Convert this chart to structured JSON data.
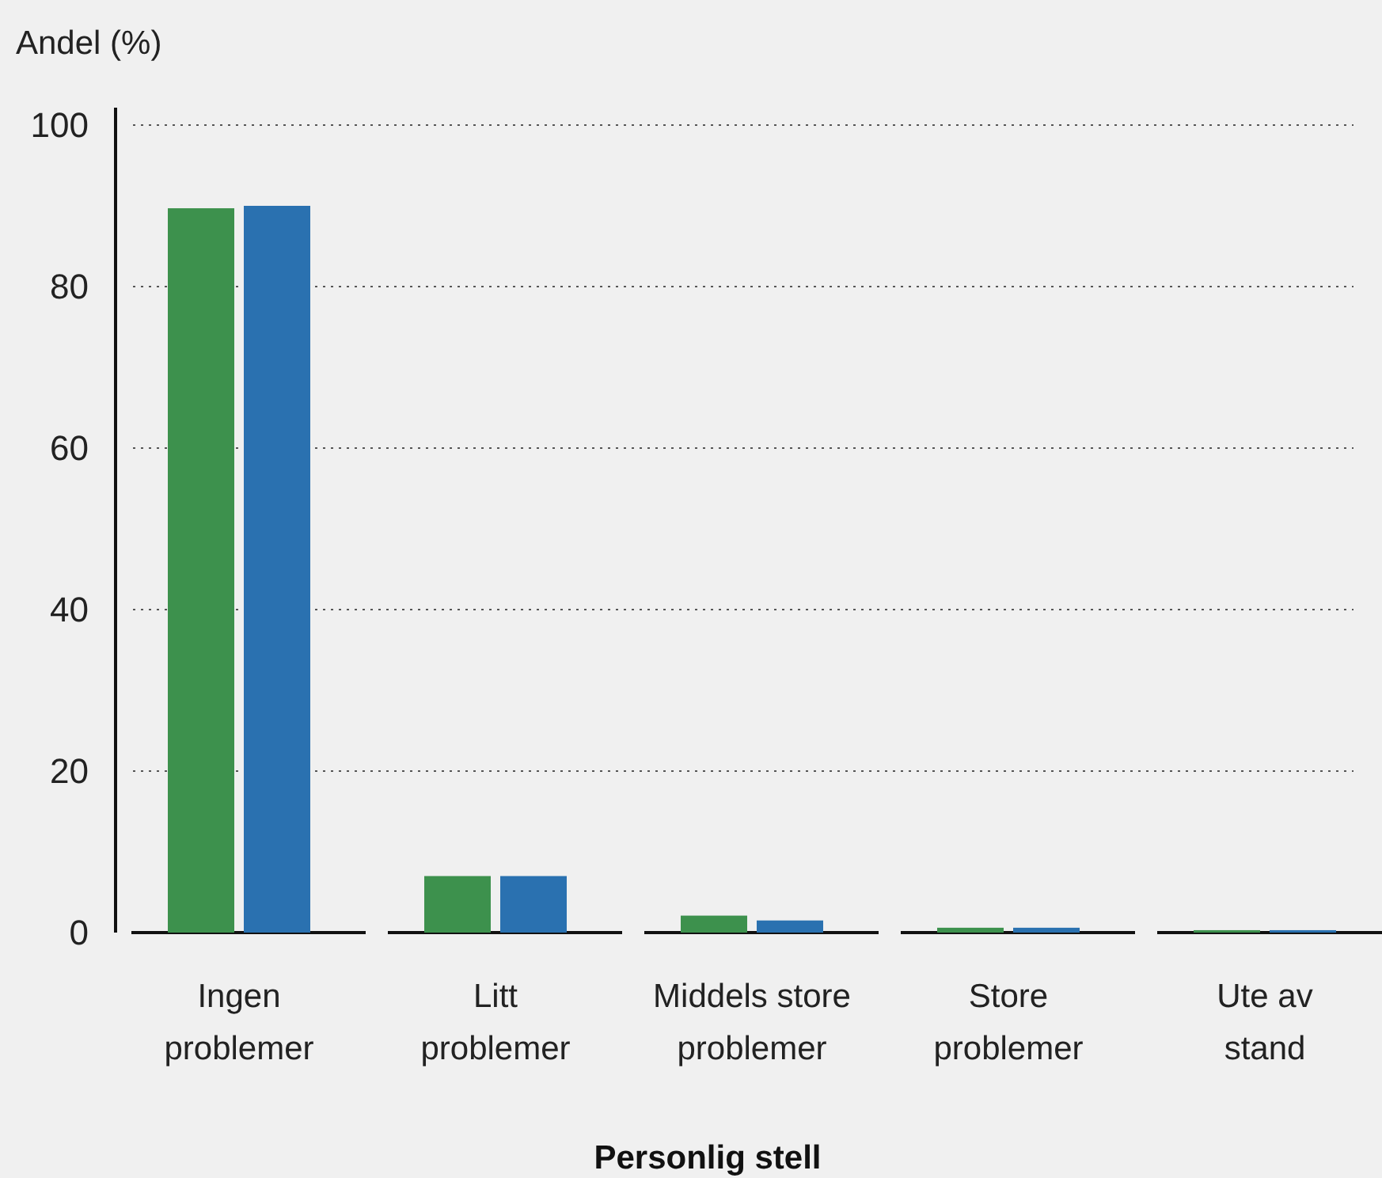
{
  "chart_data": {
    "type": "bar",
    "ylabel": "Andel (%)",
    "xlabel": "Personlig stell",
    "categories": [
      "Ingen problemer",
      "Litt problemer",
      "Middels store problemer",
      "Store problemer",
      "Ute av stand"
    ],
    "series": [
      {
        "color": "#3d914d",
        "values": [
          89.7,
          7.0,
          2.1,
          0.6,
          0.3
        ]
      },
      {
        "color": "#2a71b0",
        "values": [
          90.0,
          7.0,
          1.5,
          0.6,
          0.3
        ]
      }
    ],
    "ylim": [
      0,
      100
    ],
    "yticks": [
      0,
      20,
      40,
      60,
      80,
      100
    ],
    "grid": "y"
  }
}
